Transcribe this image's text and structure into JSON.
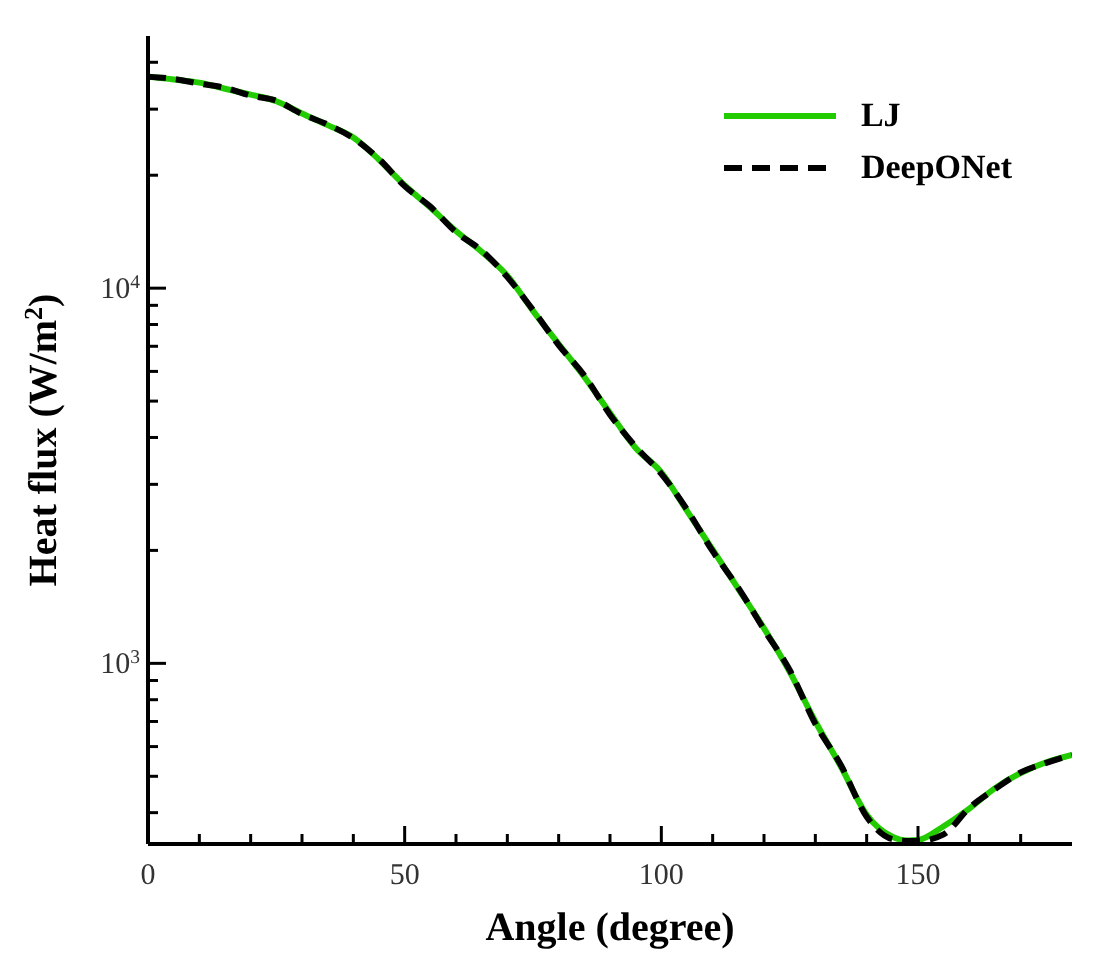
{
  "chart_data": {
    "type": "line",
    "xlabel": "Angle (degree)",
    "ylabel": "Heat flux (W/m$^{2}$)",
    "x": [
      0,
      5,
      10,
      15,
      20,
      25,
      30,
      35,
      40,
      45,
      50,
      55,
      60,
      65,
      70,
      75,
      80,
      85,
      90,
      95,
      100,
      105,
      110,
      115,
      120,
      125,
      130,
      135,
      140,
      145,
      148,
      150,
      155,
      160,
      165,
      170,
      175,
      180
    ],
    "series": [
      {
        "name": "LJ",
        "color": "#22cc00",
        "line_style": "solid",
        "values": [
          36600,
          36000,
          35300,
          34000,
          32800,
          31500,
          29200,
          27200,
          25200,
          22000,
          18800,
          16400,
          14200,
          12500,
          10800,
          8700,
          7100,
          5800,
          4650,
          3750,
          3230,
          2550,
          2010,
          1580,
          1240,
          950,
          700,
          530,
          395,
          345,
          337,
          338,
          368,
          410,
          465,
          510,
          545,
          570
        ]
      },
      {
        "name": "DeepONet",
        "color": "#000000",
        "line_style": "dashed",
        "values": [
          36600,
          36100,
          35100,
          34200,
          32600,
          31600,
          29100,
          27300,
          25100,
          22100,
          18700,
          16500,
          14100,
          12600,
          10700,
          8750,
          7050,
          5850,
          4600,
          3780,
          3200,
          2570,
          1990,
          1590,
          1230,
          960,
          690,
          535,
          390,
          340,
          336,
          336,
          350,
          412,
          462,
          512,
          543,
          570
        ]
      }
    ],
    "xlim": [
      0,
      180
    ],
    "xticks": [
      0,
      {
        "value": 10,
        "label": null
      },
      {
        "value": 20,
        "label": null
      },
      {
        "value": 30,
        "label": null
      },
      {
        "value": 40,
        "label": null
      },
      50,
      {
        "value": 60,
        "label": null
      },
      {
        "value": 70,
        "label": null
      },
      {
        "value": 80,
        "label": null
      },
      {
        "value": 90,
        "label": null
      },
      100,
      {
        "value": 110,
        "label": null
      },
      {
        "value": 120,
        "label": null
      },
      {
        "value": 130,
        "label": null
      },
      {
        "value": 140,
        "label": null
      },
      150,
      {
        "value": 160,
        "label": null
      },
      {
        "value": 170,
        "label": null
      }
    ],
    "log": "y",
    "ylim": [
      330,
      47000
    ],
    "yticks": [
      {
        "value": 400,
        "label": null
      },
      {
        "value": 500,
        "label": null
      },
      {
        "value": 600,
        "label": null
      },
      {
        "value": 700,
        "label": null
      },
      {
        "value": 800,
        "label": null
      },
      {
        "value": 900,
        "label": null
      },
      {
        "value": 1000,
        "label": "10$^{3}$"
      },
      {
        "value": 2000,
        "label": null
      },
      {
        "value": 3000,
        "label": null
      },
      {
        "value": 4000,
        "label": null
      },
      {
        "value": 5000,
        "label": null
      },
      {
        "value": 6000,
        "label": null
      },
      {
        "value": 7000,
        "label": null
      },
      {
        "value": 8000,
        "label": null
      },
      {
        "value": 9000,
        "label": null
      },
      {
        "value": 10000,
        "label": "10$^{4}$"
      },
      {
        "value": 20000,
        "label": null
      },
      {
        "value": 30000,
        "label": null
      },
      {
        "value": 40000,
        "label": null
      }
    ],
    "grid": false,
    "legend": "top right",
    "marker": "none"
  }
}
